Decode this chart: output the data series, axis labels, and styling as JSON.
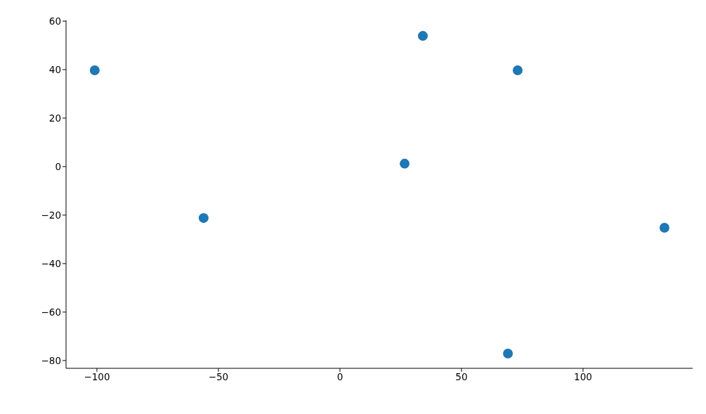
{
  "chart_data": {
    "type": "scatter",
    "x": [
      -100.9,
      -56.1,
      26.6,
      34.1,
      73.1,
      69.1,
      133.5
    ],
    "values": [
      39.7,
      -21.2,
      1.2,
      53.9,
      39.7,
      -77.1,
      -25.2
    ],
    "color": "#1f77b4",
    "marker": "circle",
    "grid": false,
    "legend": false,
    "xlim": [
      -112.7,
      145.1
    ],
    "ylim": [
      -83.2,
      60.3
    ],
    "xticks": [
      {
        "value": -100,
        "label": "−100"
      },
      {
        "value": -50,
        "label": "−50"
      },
      0,
      50,
      100
    ],
    "yticks": [
      {
        "value": -80,
        "label": "−80"
      },
      {
        "value": -60,
        "label": "−60"
      },
      {
        "value": -40,
        "label": "−40"
      },
      {
        "value": -20,
        "label": "−20"
      },
      0,
      20,
      40,
      60
    ]
  }
}
